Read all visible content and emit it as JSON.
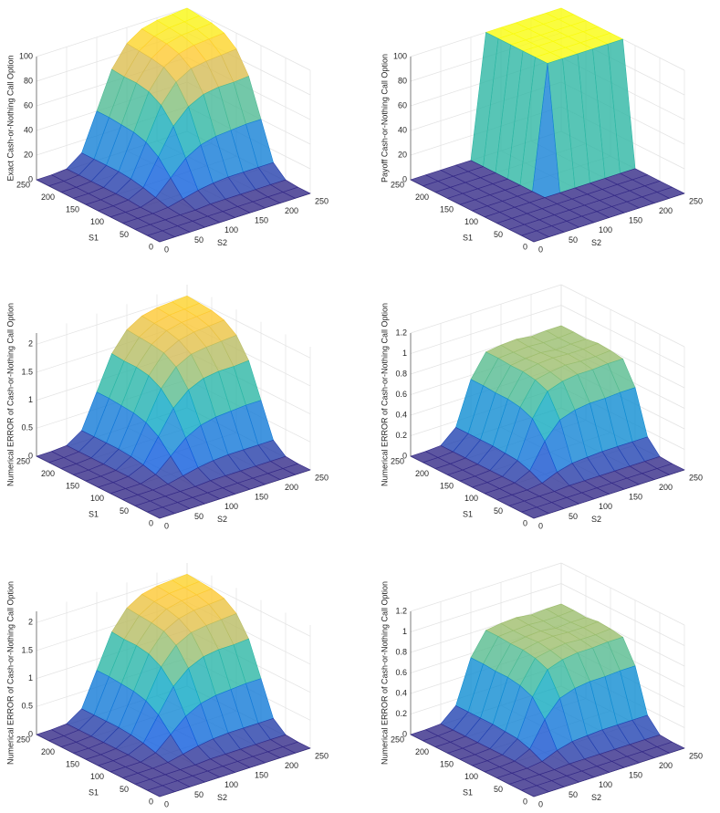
{
  "chart_data": [
    {
      "type": "surface",
      "colormap": "parula",
      "zlabel": "Exact Cash-or-Nothing Call Option",
      "xlabel": "S2",
      "ylabel": "S1",
      "x": [
        0,
        25,
        50,
        75,
        100,
        125,
        150,
        175,
        200,
        225,
        250
      ],
      "y": [
        0,
        25,
        50,
        75,
        100,
        125,
        150,
        175,
        200,
        225,
        250
      ],
      "z": [
        [
          0,
          0,
          0,
          0,
          0,
          0,
          0,
          0,
          0,
          0,
          0
        ],
        [
          0,
          0,
          0,
          0,
          0,
          0,
          0,
          0,
          0,
          0,
          0
        ],
        [
          0,
          0,
          0,
          0,
          0,
          1,
          1,
          1,
          1,
          1,
          1
        ],
        [
          0,
          0,
          0,
          1,
          4,
          7,
          9,
          10,
          10,
          10,
          10
        ],
        [
          0,
          0,
          0,
          4,
          16,
          28,
          35,
          38,
          39,
          40,
          40
        ],
        [
          0,
          0,
          1,
          7,
          28,
          49,
          61,
          67,
          69,
          69,
          70
        ],
        [
          0,
          0,
          1,
          9,
          35,
          61,
          76,
          83,
          85,
          86,
          87
        ],
        [
          0,
          0,
          1,
          10,
          38,
          67,
          83,
          90,
          93,
          94,
          95
        ],
        [
          0,
          0,
          1,
          10,
          39,
          69,
          85,
          93,
          96,
          97,
          98
        ],
        [
          0,
          0,
          1,
          10,
          40,
          69,
          86,
          94,
          97,
          98,
          99
        ],
        [
          0,
          0,
          1,
          10,
          40,
          70,
          87,
          95,
          98,
          99,
          100
        ]
      ],
      "xlim": [
        0,
        250
      ],
      "ylim": [
        0,
        250
      ],
      "zlim": [
        0,
        100
      ],
      "xticks": [
        0,
        50,
        100,
        150,
        200,
        250
      ],
      "yticks": [
        0,
        50,
        100,
        150,
        200,
        250
      ],
      "zticks": [
        0,
        20,
        40,
        60,
        80,
        100
      ]
    },
    {
      "type": "surface",
      "colormap": "parula",
      "zlabel": "Payoff Cash-or-Nothing Call Option",
      "xlabel": "S2",
      "ylabel": "S1",
      "x": [
        0,
        25,
        50,
        75,
        100,
        125,
        150,
        175,
        200,
        225,
        250
      ],
      "y": [
        0,
        25,
        50,
        75,
        100,
        125,
        150,
        175,
        200,
        225,
        250
      ],
      "z": [
        [
          0,
          0,
          0,
          0,
          0,
          0,
          0,
          0,
          0,
          0,
          0
        ],
        [
          0,
          0,
          0,
          0,
          0,
          0,
          0,
          0,
          0,
          0,
          0
        ],
        [
          0,
          0,
          0,
          0,
          0,
          0,
          0,
          0,
          0,
          0,
          0
        ],
        [
          0,
          0,
          0,
          0,
          0,
          0,
          0,
          0,
          0,
          0,
          0
        ],
        [
          0,
          0,
          0,
          0,
          0,
          0,
          0,
          0,
          0,
          0,
          0
        ],
        [
          0,
          0,
          0,
          0,
          0,
          100,
          100,
          100,
          100,
          100,
          100
        ],
        [
          0,
          0,
          0,
          0,
          0,
          100,
          100,
          100,
          100,
          100,
          100
        ],
        [
          0,
          0,
          0,
          0,
          0,
          100,
          100,
          100,
          100,
          100,
          100
        ],
        [
          0,
          0,
          0,
          0,
          0,
          100,
          100,
          100,
          100,
          100,
          100
        ],
        [
          0,
          0,
          0,
          0,
          0,
          100,
          100,
          100,
          100,
          100,
          100
        ],
        [
          0,
          0,
          0,
          0,
          0,
          100,
          100,
          100,
          100,
          100,
          100
        ]
      ],
      "xlim": [
        0,
        250
      ],
      "ylim": [
        0,
        250
      ],
      "zlim": [
        0,
        100
      ],
      "xticks": [
        0,
        50,
        100,
        150,
        200,
        250
      ],
      "yticks": [
        0,
        50,
        100,
        150,
        200,
        250
      ],
      "zticks": [
        0,
        20,
        40,
        60,
        80,
        100
      ]
    },
    {
      "type": "surface",
      "colormap": "parula",
      "zlabel": "Numerical ERROR of Cash-or-Nothing Call Option",
      "xlabel": "S2",
      "ylabel": "S1",
      "x": [
        0,
        25,
        50,
        75,
        100,
        125,
        150,
        175,
        200,
        225,
        250
      ],
      "y": [
        0,
        25,
        50,
        75,
        100,
        125,
        150,
        175,
        200,
        225,
        250
      ],
      "z": [
        [
          0,
          0,
          0,
          0,
          0,
          0,
          0,
          0,
          0,
          0,
          0
        ],
        [
          0,
          0,
          0,
          0,
          0,
          0,
          0,
          0,
          0,
          0,
          0
        ],
        [
          0,
          0,
          0,
          0,
          0,
          0.02,
          0.02,
          0.02,
          0.02,
          0.02,
          0.02
        ],
        [
          0,
          0,
          0,
          0.02,
          0.08,
          0.14,
          0.18,
          0.2,
          0.2,
          0.2,
          0.2
        ],
        [
          0,
          0,
          0,
          0.08,
          0.32,
          0.56,
          0.7,
          0.76,
          0.78,
          0.8,
          0.8
        ],
        [
          0,
          0,
          0.02,
          0.14,
          0.56,
          0.98,
          1.22,
          1.34,
          1.38,
          1.38,
          1.4
        ],
        [
          0,
          0,
          0.02,
          0.18,
          0.7,
          1.22,
          1.52,
          1.66,
          1.7,
          1.72,
          1.74
        ],
        [
          0,
          0,
          0.02,
          0.2,
          0.76,
          1.34,
          1.66,
          1.8,
          1.86,
          1.88,
          1.9
        ],
        [
          0,
          0,
          0.02,
          0.2,
          0.78,
          1.38,
          1.7,
          1.86,
          1.92,
          1.94,
          1.96
        ],
        [
          0,
          0,
          0.02,
          0.2,
          0.8,
          1.38,
          1.72,
          1.88,
          1.94,
          1.96,
          1.98
        ],
        [
          0,
          0,
          0.02,
          0.2,
          0.8,
          1.4,
          1.74,
          1.9,
          1.96,
          1.98,
          2
        ]
      ],
      "xlim": [
        0,
        250
      ],
      "ylim": [
        0,
        250
      ],
      "zlim": [
        0,
        2.2
      ],
      "xticks": [
        0,
        50,
        100,
        150,
        200,
        250
      ],
      "yticks": [
        0,
        50,
        100,
        150,
        200,
        250
      ],
      "zticks": [
        0,
        0.5,
        1,
        1.5,
        2
      ]
    },
    {
      "type": "surface",
      "colormap": "parula",
      "zlabel": "Numerical ERROR of Cash-or-Nothing Call Option",
      "xlabel": "S2",
      "ylabel": "S1",
      "x": [
        0,
        25,
        50,
        75,
        100,
        125,
        150,
        175,
        200,
        225,
        250
      ],
      "y": [
        0,
        25,
        50,
        75,
        100,
        125,
        150,
        175,
        200,
        225,
        250
      ],
      "z": [
        [
          0,
          0,
          0,
          0,
          0,
          0,
          0,
          0,
          0,
          0,
          0
        ],
        [
          0,
          0,
          0,
          0,
          0,
          0,
          0,
          0,
          0,
          0,
          0
        ],
        [
          0,
          0,
          0,
          0,
          0.01,
          0.01,
          0.01,
          0.01,
          0.01,
          0.01,
          0.01
        ],
        [
          0,
          0,
          0,
          0.02,
          0.08,
          0.12,
          0.13,
          0.14,
          0.14,
          0.14,
          0.14
        ],
        [
          0,
          0,
          0.01,
          0.08,
          0.32,
          0.48,
          0.53,
          0.55,
          0.55,
          0.56,
          0.56
        ],
        [
          0,
          0,
          0.01,
          0.12,
          0.48,
          0.7,
          0.75,
          0.77,
          0.77,
          0.78,
          0.78
        ],
        [
          0,
          0,
          0.01,
          0.13,
          0.53,
          0.75,
          0.78,
          0.8,
          0.79,
          0.79,
          0.8
        ],
        [
          0,
          0,
          0.01,
          0.14,
          0.55,
          0.77,
          0.8,
          0.81,
          0.8,
          0.8,
          0.81
        ],
        [
          0,
          0,
          0.01,
          0.14,
          0.55,
          0.77,
          0.79,
          0.8,
          0.78,
          0.79,
          0.79
        ],
        [
          0,
          0,
          0.01,
          0.14,
          0.56,
          0.78,
          0.79,
          0.8,
          0.79,
          0.79,
          0.8
        ],
        [
          0,
          0,
          0.01,
          0.14,
          0.56,
          0.78,
          0.8,
          0.81,
          0.79,
          0.8,
          0.8
        ]
      ],
      "xlim": [
        0,
        250
      ],
      "ylim": [
        0,
        250
      ],
      "zlim": [
        0,
        1.2
      ],
      "xticks": [
        0,
        50,
        100,
        150,
        200,
        250
      ],
      "yticks": [
        0,
        50,
        100,
        150,
        200,
        250
      ],
      "zticks": [
        0,
        0.2,
        0.4,
        0.6,
        0.8,
        1,
        1.2
      ]
    },
    {
      "type": "surface",
      "colormap": "parula",
      "zlabel": "Numerical ERROR of Cash-or-Nothing Call Option",
      "xlabel": "S2",
      "ylabel": "S1",
      "x": [
        0,
        25,
        50,
        75,
        100,
        125,
        150,
        175,
        200,
        225,
        250
      ],
      "y": [
        0,
        25,
        50,
        75,
        100,
        125,
        150,
        175,
        200,
        225,
        250
      ],
      "z": [
        [
          0,
          0,
          0,
          0,
          0,
          0,
          0,
          0,
          0,
          0,
          0
        ],
        [
          0,
          0,
          0,
          0,
          0,
          0,
          0,
          0,
          0,
          0,
          0
        ],
        [
          0,
          0,
          0,
          0,
          0,
          0.02,
          0.02,
          0.02,
          0.02,
          0.02,
          0.02
        ],
        [
          0,
          0,
          0,
          0.02,
          0.08,
          0.14,
          0.18,
          0.2,
          0.2,
          0.2,
          0.2
        ],
        [
          0,
          0,
          0,
          0.08,
          0.32,
          0.56,
          0.7,
          0.76,
          0.78,
          0.8,
          0.8
        ],
        [
          0,
          0,
          0.02,
          0.14,
          0.56,
          0.98,
          1.22,
          1.34,
          1.38,
          1.38,
          1.4
        ],
        [
          0,
          0,
          0.02,
          0.18,
          0.7,
          1.22,
          1.52,
          1.66,
          1.7,
          1.72,
          1.74
        ],
        [
          0,
          0,
          0.02,
          0.2,
          0.76,
          1.34,
          1.66,
          1.8,
          1.86,
          1.88,
          1.9
        ],
        [
          0,
          0,
          0.02,
          0.2,
          0.78,
          1.38,
          1.7,
          1.86,
          1.92,
          1.94,
          1.96
        ],
        [
          0,
          0,
          0.02,
          0.2,
          0.8,
          1.38,
          1.72,
          1.88,
          1.94,
          1.96,
          1.98
        ],
        [
          0,
          0,
          0.02,
          0.2,
          0.8,
          1.4,
          1.74,
          1.9,
          1.96,
          1.98,
          2
        ]
      ],
      "xlim": [
        0,
        250
      ],
      "ylim": [
        0,
        250
      ],
      "zlim": [
        0,
        2.2
      ],
      "xticks": [
        0,
        50,
        100,
        150,
        200,
        250
      ],
      "yticks": [
        0,
        50,
        100,
        150,
        200,
        250
      ],
      "zticks": [
        0,
        0.5,
        1,
        1.5,
        2
      ]
    },
    {
      "type": "surface",
      "colormap": "parula",
      "zlabel": "Numerical ERROR of Cash-or-Nothing Call Option",
      "xlabel": "S2",
      "ylabel": "S1",
      "x": [
        0,
        25,
        50,
        75,
        100,
        125,
        150,
        175,
        200,
        225,
        250
      ],
      "y": [
        0,
        25,
        50,
        75,
        100,
        125,
        150,
        175,
        200,
        225,
        250
      ],
      "z": [
        [
          0,
          0,
          0,
          0,
          0,
          0,
          0,
          0,
          0,
          0,
          0
        ],
        [
          0,
          0,
          0,
          0,
          0,
          0,
          0,
          0,
          0,
          0,
          0
        ],
        [
          0,
          0,
          0,
          0,
          0.01,
          0.01,
          0.01,
          0.01,
          0.01,
          0.01,
          0.01
        ],
        [
          0,
          0,
          0,
          0.02,
          0.08,
          0.12,
          0.13,
          0.14,
          0.14,
          0.14,
          0.14
        ],
        [
          0,
          0,
          0.01,
          0.08,
          0.32,
          0.48,
          0.53,
          0.55,
          0.55,
          0.56,
          0.56
        ],
        [
          0,
          0,
          0.01,
          0.12,
          0.48,
          0.7,
          0.75,
          0.77,
          0.77,
          0.78,
          0.78
        ],
        [
          0,
          0,
          0.01,
          0.13,
          0.53,
          0.75,
          0.78,
          0.8,
          0.79,
          0.79,
          0.8
        ],
        [
          0,
          0,
          0.01,
          0.14,
          0.55,
          0.77,
          0.8,
          0.81,
          0.8,
          0.8,
          0.81
        ],
        [
          0,
          0,
          0.01,
          0.14,
          0.55,
          0.77,
          0.79,
          0.8,
          0.78,
          0.79,
          0.79
        ],
        [
          0,
          0,
          0.01,
          0.14,
          0.56,
          0.78,
          0.79,
          0.8,
          0.79,
          0.79,
          0.8
        ],
        [
          0,
          0,
          0.01,
          0.14,
          0.56,
          0.78,
          0.8,
          0.81,
          0.79,
          0.8,
          0.8
        ]
      ],
      "xlim": [
        0,
        250
      ],
      "ylim": [
        0,
        250
      ],
      "zlim": [
        0,
        1.2
      ],
      "xticks": [
        0,
        50,
        100,
        150,
        200,
        250
      ],
      "yticks": [
        0,
        50,
        100,
        150,
        200,
        250
      ],
      "zticks": [
        0,
        0.2,
        0.4,
        0.6,
        0.8,
        1,
        1.2
      ]
    }
  ]
}
